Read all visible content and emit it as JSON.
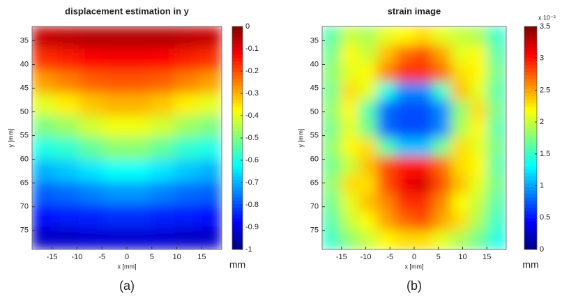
{
  "chart_data": [
    {
      "type": "heatmap",
      "title": "displacement estimation in y",
      "xlabel": "x [mm]",
      "ylabel": "y [mm]",
      "colormap": "jet",
      "colorbar_label": "mm",
      "caption": "(a)",
      "xlim": [
        -19,
        19
      ],
      "ylim": [
        32,
        79
      ],
      "y_inverted": true,
      "xticks": [
        -15,
        -10,
        -5,
        0,
        5,
        10,
        15
      ],
      "yticks": [
        35,
        40,
        45,
        50,
        55,
        60,
        65,
        70,
        75
      ],
      "clim": [
        -1,
        0
      ],
      "cticks": [
        0,
        -0.1,
        -0.2,
        -0.3,
        -0.4,
        -0.5,
        -0.6,
        -0.7,
        -0.8,
        -0.9,
        -1
      ],
      "x": [
        -16.6,
        -11.9,
        -7.1,
        -2.4,
        2.4,
        7.1,
        11.9,
        16.6
      ],
      "y": [
        34.4,
        39.1,
        43.8,
        48.5,
        53.2,
        57.8,
        62.5,
        67.2,
        71.9,
        76.6
      ],
      "z": [
        [
          -0.07,
          -0.06,
          -0.05,
          -0.05,
          -0.05,
          -0.05,
          -0.06,
          -0.07
        ],
        [
          -0.17,
          -0.15,
          -0.13,
          -0.12,
          -0.12,
          -0.13,
          -0.15,
          -0.17
        ],
        [
          -0.28,
          -0.25,
          -0.22,
          -0.21,
          -0.21,
          -0.22,
          -0.25,
          -0.28
        ],
        [
          -0.4,
          -0.36,
          -0.32,
          -0.3,
          -0.3,
          -0.32,
          -0.36,
          -0.4
        ],
        [
          -0.5,
          -0.47,
          -0.42,
          -0.39,
          -0.39,
          -0.42,
          -0.47,
          -0.5
        ],
        [
          -0.6,
          -0.58,
          -0.53,
          -0.49,
          -0.49,
          -0.53,
          -0.58,
          -0.6
        ],
        [
          -0.7,
          -0.68,
          -0.65,
          -0.62,
          -0.62,
          -0.65,
          -0.68,
          -0.7
        ],
        [
          -0.78,
          -0.77,
          -0.75,
          -0.73,
          -0.73,
          -0.75,
          -0.77,
          -0.78
        ],
        [
          -0.86,
          -0.85,
          -0.84,
          -0.83,
          -0.83,
          -0.84,
          -0.85,
          -0.86
        ],
        [
          -0.93,
          -0.93,
          -0.92,
          -0.92,
          -0.92,
          -0.92,
          -0.93,
          -0.93
        ]
      ]
    },
    {
      "type": "heatmap",
      "title": "strain image",
      "xlabel": "x [mm]",
      "ylabel": "y [mm]",
      "colormap": "jet",
      "colorbar_label": "mm",
      "colorbar_multiplier": "x 10⁻³",
      "caption": "(b)",
      "xlim": [
        -19,
        19
      ],
      "ylim": [
        32,
        79
      ],
      "y_inverted": true,
      "xticks": [
        -15,
        -10,
        -5,
        0,
        5,
        10,
        15
      ],
      "yticks": [
        35,
        40,
        45,
        50,
        55,
        60,
        65,
        70,
        75
      ],
      "clim": [
        0,
        3.5
      ],
      "cticks": [
        0,
        0.5,
        1,
        1.5,
        2,
        2.5,
        3,
        3.5
      ],
      "x": [
        -17.1,
        -13.3,
        -9.5,
        -5.7,
        -1.9,
        1.9,
        5.7,
        9.5,
        13.3,
        17.1
      ],
      "y": [
        34,
        37.9,
        41.8,
        45.7,
        49.6,
        53.6,
        57.5,
        61.4,
        65.3,
        69.3,
        73.2,
        77.1
      ],
      "z": [
        [
          1.6,
          2.0,
          1.9,
          2.1,
          2.2,
          2.3,
          2.1,
          2.0,
          1.9,
          1.5
        ],
        [
          1.7,
          2.2,
          2.0,
          2.4,
          2.7,
          2.8,
          2.5,
          2.1,
          2.2,
          1.6
        ],
        [
          1.8,
          2.1,
          2.2,
          2.6,
          2.9,
          2.9,
          2.7,
          2.3,
          2.2,
          1.7
        ],
        [
          1.7,
          2.3,
          2.1,
          1.4,
          0.9,
          0.9,
          1.5,
          2.4,
          2.1,
          1.6
        ],
        [
          1.8,
          2.2,
          1.6,
          0.8,
          0.7,
          0.7,
          0.9,
          1.8,
          2.3,
          1.7
        ],
        [
          1.7,
          2.1,
          1.7,
          0.8,
          0.7,
          0.7,
          0.9,
          1.9,
          2.2,
          1.6
        ],
        [
          1.8,
          2.2,
          2.3,
          1.6,
          1.1,
          1.1,
          1.7,
          2.3,
          2.1,
          1.7
        ],
        [
          1.7,
          2.0,
          2.4,
          2.8,
          3.0,
          3.0,
          2.7,
          2.3,
          2.2,
          1.6
        ],
        [
          1.8,
          2.3,
          2.3,
          2.8,
          3.1,
          3.2,
          2.8,
          2.4,
          2.1,
          1.7
        ],
        [
          1.7,
          2.1,
          2.4,
          2.6,
          2.9,
          2.9,
          2.6,
          2.2,
          2.0,
          1.6
        ],
        [
          1.6,
          2.0,
          2.2,
          2.5,
          2.7,
          2.8,
          2.5,
          2.3,
          1.9,
          1.5
        ],
        [
          1.5,
          1.8,
          2.0,
          2.2,
          2.3,
          2.3,
          2.1,
          1.9,
          1.7,
          1.4
        ]
      ]
    }
  ]
}
